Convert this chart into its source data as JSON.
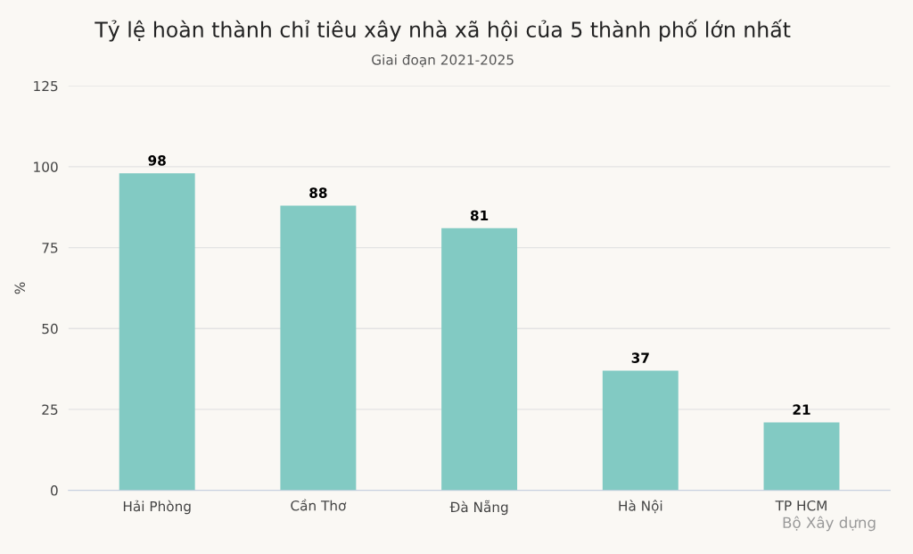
{
  "chart_data": {
    "type": "bar",
    "title": "Tỷ lệ hoàn thành chỉ tiêu xây nhà xã hội của 5 thành phố lớn nhất",
    "subtitle": "Giai đoạn 2021-2025",
    "ylabel": "%",
    "categories": [
      "Hải Phòng",
      "Cần Thơ",
      "Đà Nẵng",
      "Hà Nội",
      "TP HCM"
    ],
    "values": [
      98,
      88,
      81,
      37,
      21
    ],
    "color": "#82cac3",
    "ylim": [
      0,
      125
    ],
    "yticks": [
      0,
      25,
      50,
      75,
      100,
      125
    ],
    "grid": "y",
    "data_labels": true,
    "annotations": [
      "Bộ Xây dựng"
    ]
  }
}
